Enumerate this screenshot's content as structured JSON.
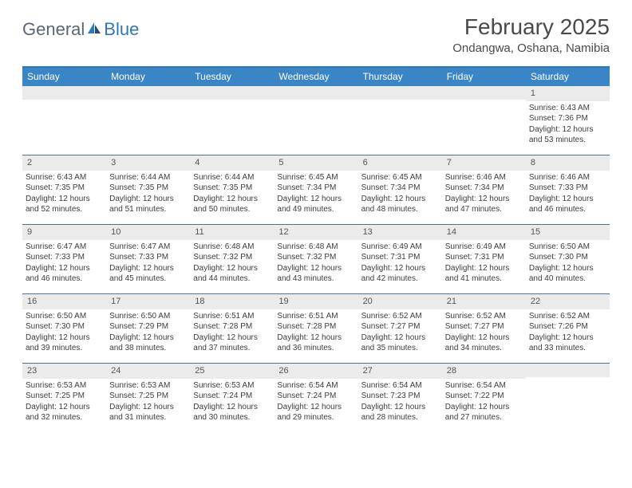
{
  "logo": {
    "general": "General",
    "blue": "Blue"
  },
  "title": "February 2025",
  "location": "Ondangwa, Oshana, Namibia",
  "dayNames": [
    "Sunday",
    "Monday",
    "Tuesday",
    "Wednesday",
    "Thursday",
    "Friday",
    "Saturday"
  ],
  "colors": {
    "header_bg": "#3a85c6",
    "border_top": "#2f78b8",
    "week_border": "#4a74a0",
    "daynum_bg": "#ebebeb",
    "text": "#3d3d3d"
  },
  "weeks": [
    [
      null,
      null,
      null,
      null,
      null,
      null,
      {
        "n": "1",
        "sr": "Sunrise: 6:43 AM",
        "ss": "Sunset: 7:36 PM",
        "dl": "Daylight: 12 hours and 53 minutes."
      }
    ],
    [
      {
        "n": "2",
        "sr": "Sunrise: 6:43 AM",
        "ss": "Sunset: 7:35 PM",
        "dl": "Daylight: 12 hours and 52 minutes."
      },
      {
        "n": "3",
        "sr": "Sunrise: 6:44 AM",
        "ss": "Sunset: 7:35 PM",
        "dl": "Daylight: 12 hours and 51 minutes."
      },
      {
        "n": "4",
        "sr": "Sunrise: 6:44 AM",
        "ss": "Sunset: 7:35 PM",
        "dl": "Daylight: 12 hours and 50 minutes."
      },
      {
        "n": "5",
        "sr": "Sunrise: 6:45 AM",
        "ss": "Sunset: 7:34 PM",
        "dl": "Daylight: 12 hours and 49 minutes."
      },
      {
        "n": "6",
        "sr": "Sunrise: 6:45 AM",
        "ss": "Sunset: 7:34 PM",
        "dl": "Daylight: 12 hours and 48 minutes."
      },
      {
        "n": "7",
        "sr": "Sunrise: 6:46 AM",
        "ss": "Sunset: 7:34 PM",
        "dl": "Daylight: 12 hours and 47 minutes."
      },
      {
        "n": "8",
        "sr": "Sunrise: 6:46 AM",
        "ss": "Sunset: 7:33 PM",
        "dl": "Daylight: 12 hours and 46 minutes."
      }
    ],
    [
      {
        "n": "9",
        "sr": "Sunrise: 6:47 AM",
        "ss": "Sunset: 7:33 PM",
        "dl": "Daylight: 12 hours and 46 minutes."
      },
      {
        "n": "10",
        "sr": "Sunrise: 6:47 AM",
        "ss": "Sunset: 7:33 PM",
        "dl": "Daylight: 12 hours and 45 minutes."
      },
      {
        "n": "11",
        "sr": "Sunrise: 6:48 AM",
        "ss": "Sunset: 7:32 PM",
        "dl": "Daylight: 12 hours and 44 minutes."
      },
      {
        "n": "12",
        "sr": "Sunrise: 6:48 AM",
        "ss": "Sunset: 7:32 PM",
        "dl": "Daylight: 12 hours and 43 minutes."
      },
      {
        "n": "13",
        "sr": "Sunrise: 6:49 AM",
        "ss": "Sunset: 7:31 PM",
        "dl": "Daylight: 12 hours and 42 minutes."
      },
      {
        "n": "14",
        "sr": "Sunrise: 6:49 AM",
        "ss": "Sunset: 7:31 PM",
        "dl": "Daylight: 12 hours and 41 minutes."
      },
      {
        "n": "15",
        "sr": "Sunrise: 6:50 AM",
        "ss": "Sunset: 7:30 PM",
        "dl": "Daylight: 12 hours and 40 minutes."
      }
    ],
    [
      {
        "n": "16",
        "sr": "Sunrise: 6:50 AM",
        "ss": "Sunset: 7:30 PM",
        "dl": "Daylight: 12 hours and 39 minutes."
      },
      {
        "n": "17",
        "sr": "Sunrise: 6:50 AM",
        "ss": "Sunset: 7:29 PM",
        "dl": "Daylight: 12 hours and 38 minutes."
      },
      {
        "n": "18",
        "sr": "Sunrise: 6:51 AM",
        "ss": "Sunset: 7:28 PM",
        "dl": "Daylight: 12 hours and 37 minutes."
      },
      {
        "n": "19",
        "sr": "Sunrise: 6:51 AM",
        "ss": "Sunset: 7:28 PM",
        "dl": "Daylight: 12 hours and 36 minutes."
      },
      {
        "n": "20",
        "sr": "Sunrise: 6:52 AM",
        "ss": "Sunset: 7:27 PM",
        "dl": "Daylight: 12 hours and 35 minutes."
      },
      {
        "n": "21",
        "sr": "Sunrise: 6:52 AM",
        "ss": "Sunset: 7:27 PM",
        "dl": "Daylight: 12 hours and 34 minutes."
      },
      {
        "n": "22",
        "sr": "Sunrise: 6:52 AM",
        "ss": "Sunset: 7:26 PM",
        "dl": "Daylight: 12 hours and 33 minutes."
      }
    ],
    [
      {
        "n": "23",
        "sr": "Sunrise: 6:53 AM",
        "ss": "Sunset: 7:25 PM",
        "dl": "Daylight: 12 hours and 32 minutes."
      },
      {
        "n": "24",
        "sr": "Sunrise: 6:53 AM",
        "ss": "Sunset: 7:25 PM",
        "dl": "Daylight: 12 hours and 31 minutes."
      },
      {
        "n": "25",
        "sr": "Sunrise: 6:53 AM",
        "ss": "Sunset: 7:24 PM",
        "dl": "Daylight: 12 hours and 30 minutes."
      },
      {
        "n": "26",
        "sr": "Sunrise: 6:54 AM",
        "ss": "Sunset: 7:24 PM",
        "dl": "Daylight: 12 hours and 29 minutes."
      },
      {
        "n": "27",
        "sr": "Sunrise: 6:54 AM",
        "ss": "Sunset: 7:23 PM",
        "dl": "Daylight: 12 hours and 28 minutes."
      },
      {
        "n": "28",
        "sr": "Sunrise: 6:54 AM",
        "ss": "Sunset: 7:22 PM",
        "dl": "Daylight: 12 hours and 27 minutes."
      },
      null
    ]
  ]
}
